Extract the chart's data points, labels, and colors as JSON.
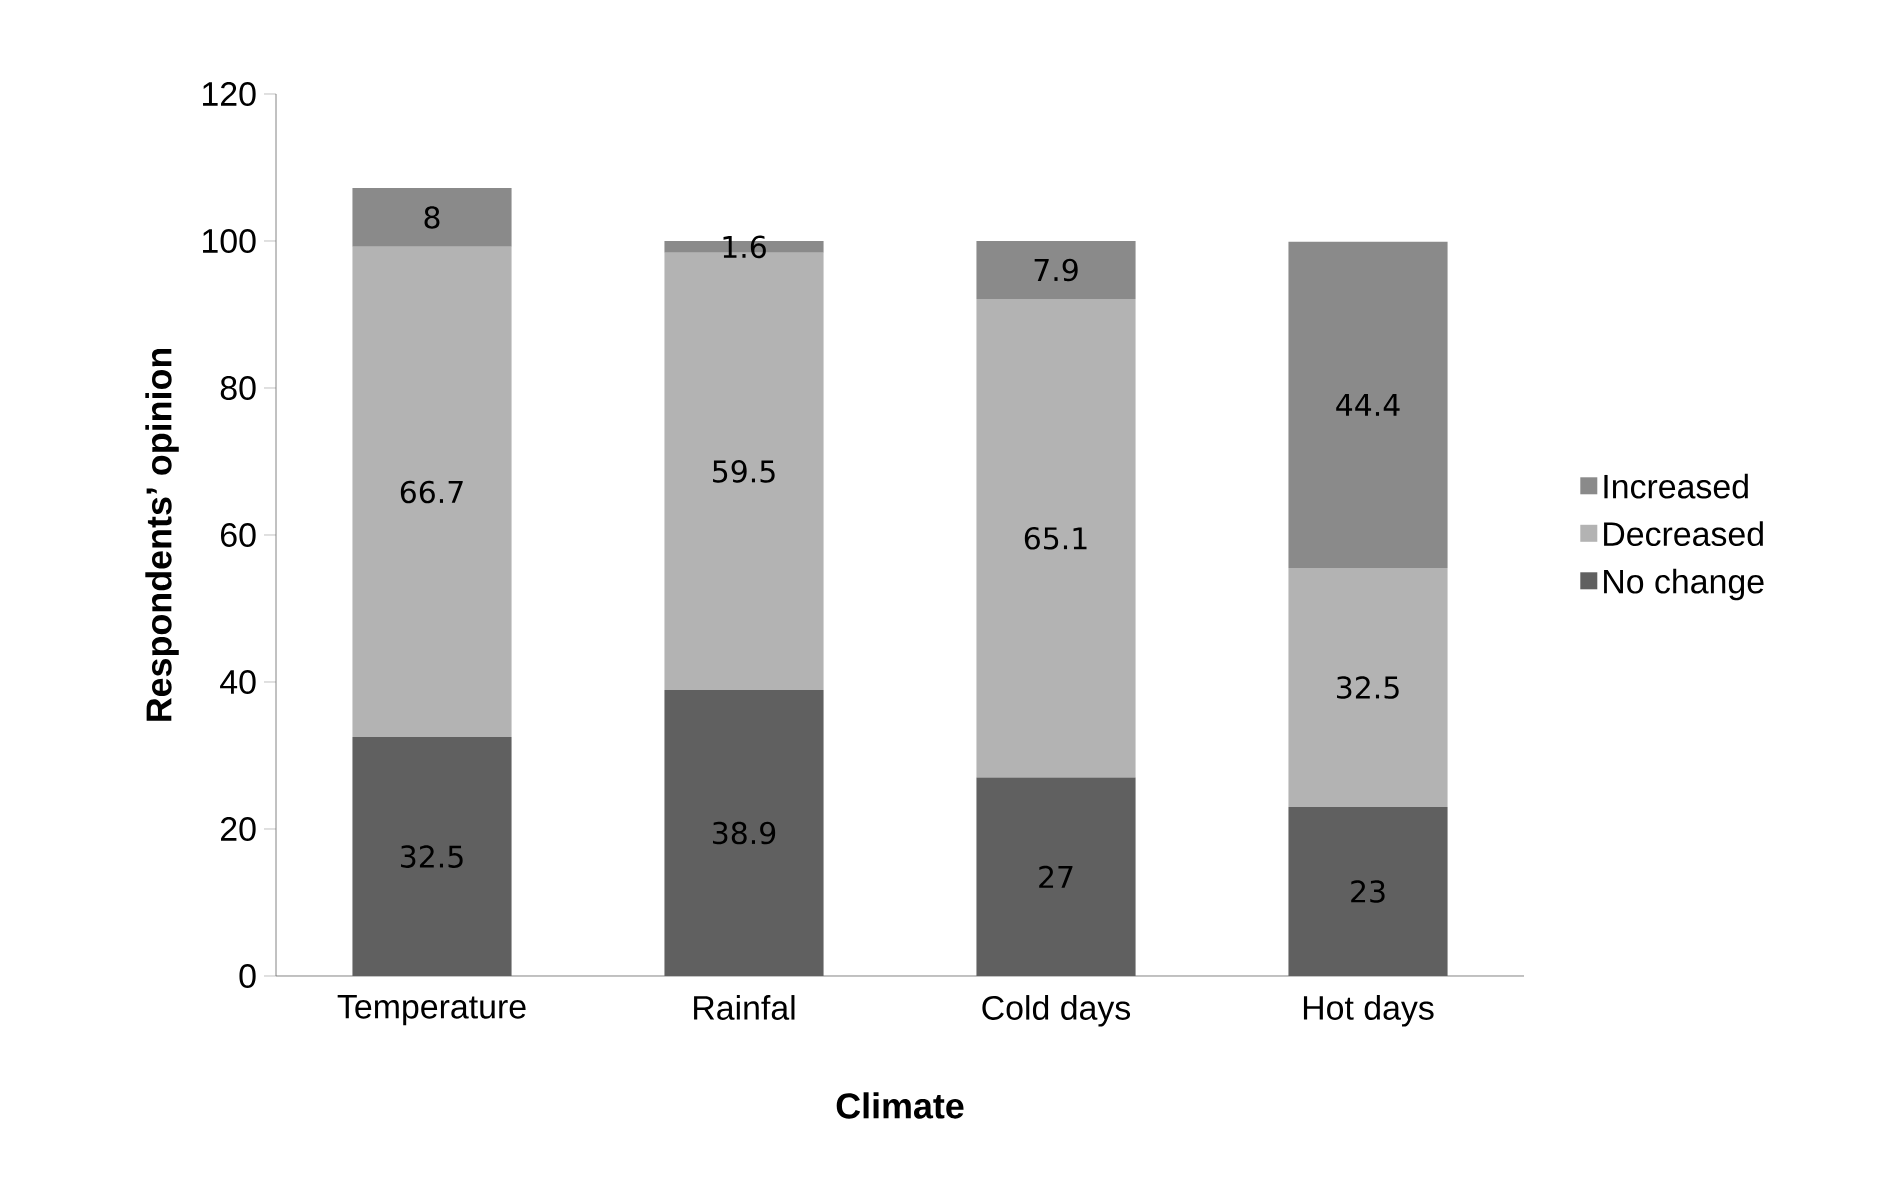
{
  "chart_data": {
    "type": "bar",
    "stacked": true,
    "xlabel": "Climate",
    "ylabel": "Respondents’ opinion",
    "categories": [
      "Temperature",
      "Rainfal",
      "Cold days",
      "Hot days"
    ],
    "series": [
      {
        "name": "No change",
        "color": "#606060",
        "values": [
          32.5,
          38.9,
          27,
          23
        ]
      },
      {
        "name": "Decreased",
        "color": "#b3b3b3",
        "values": [
          66.7,
          59.5,
          65.1,
          32.5
        ]
      },
      {
        "name": "Increased",
        "color": "#8a8a8a",
        "values": [
          8,
          1.6,
          7.9,
          44.4
        ]
      }
    ],
    "ylim": [
      0,
      120
    ],
    "yticks": [
      0,
      20,
      40,
      60,
      80,
      100,
      120
    ],
    "grid": false,
    "legend": "right",
    "data_labels": true
  }
}
